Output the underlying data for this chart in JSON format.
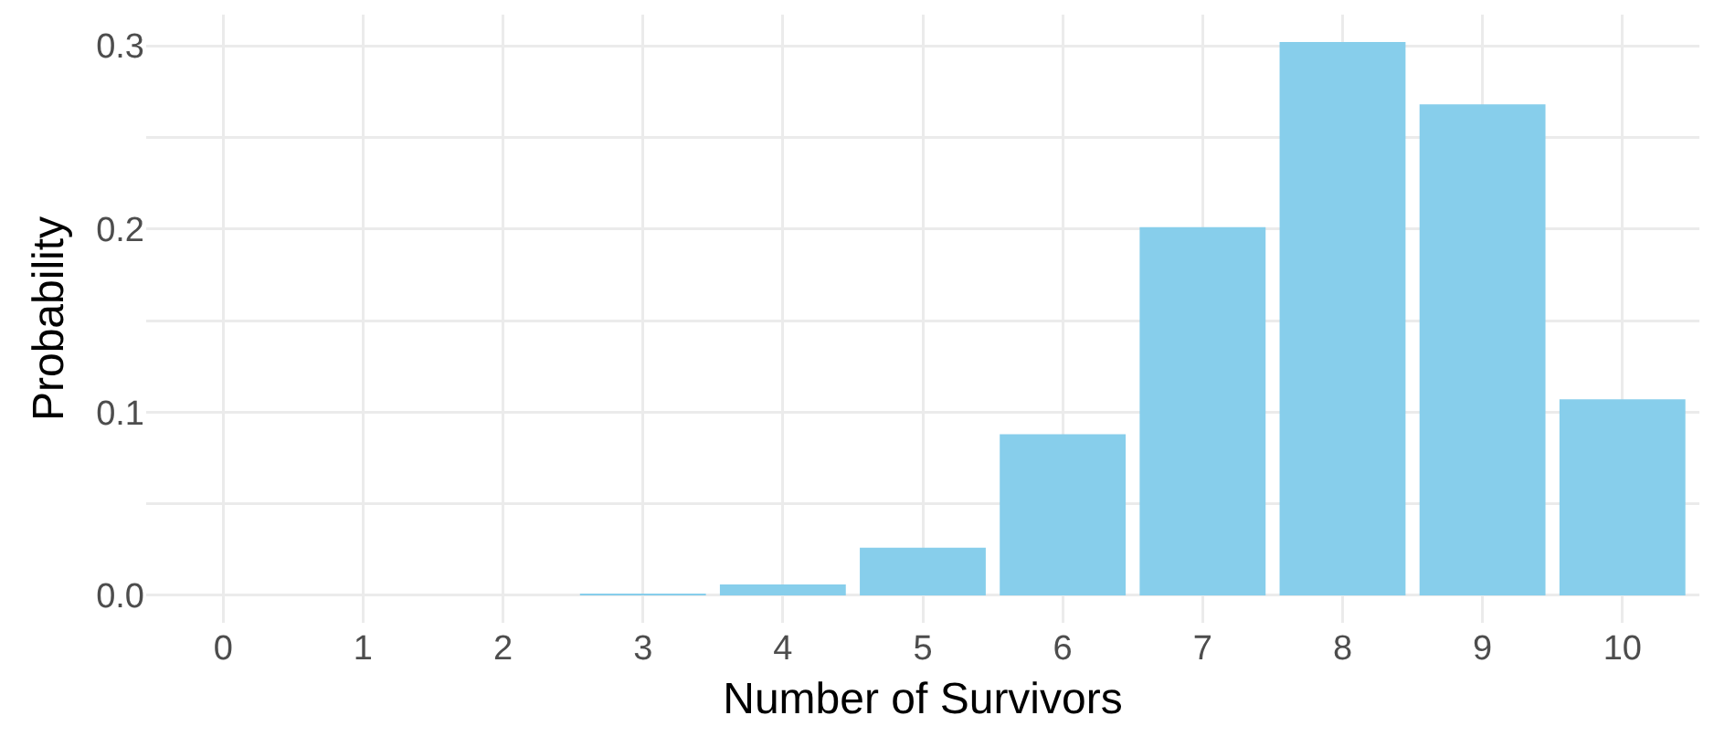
{
  "chart_data": {
    "type": "bar",
    "xlabel": "Number of Survivors",
    "ylabel": "Probability",
    "categories": [
      "0",
      "1",
      "2",
      "3",
      "4",
      "5",
      "6",
      "7",
      "8",
      "9",
      "10"
    ],
    "values": [
      0,
      0,
      0,
      0.001,
      0.006,
      0.026,
      0.088,
      0.201,
      0.302,
      0.268,
      0.107
    ],
    "color": "#87ceeb",
    "ylim": [
      -0.015,
      0.317
    ],
    "yticks": [
      {
        "value": 0,
        "label": "0.0"
      },
      {
        "value": 0.05,
        "label": null
      },
      {
        "value": 0.1,
        "label": "0.1"
      },
      {
        "value": 0.15,
        "label": null
      },
      {
        "value": 0.2,
        "label": "0.2"
      },
      {
        "value": 0.25,
        "label": null
      },
      {
        "value": 0.3,
        "label": "0.3"
      }
    ],
    "grid": true
  }
}
